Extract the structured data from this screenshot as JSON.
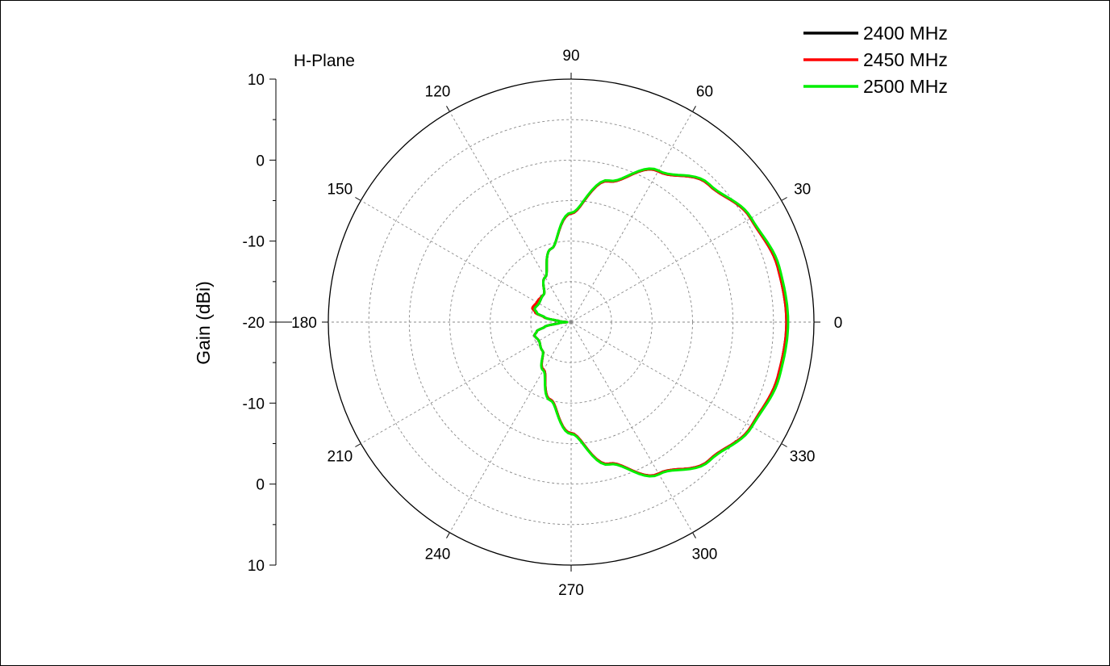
{
  "chart_data": {
    "type": "polar-line",
    "title": "H-Plane",
    "ylabel": "Gain (dBi)",
    "r_range_dbi": [
      -20,
      10
    ],
    "r_ticks": [
      "10",
      "0",
      "-10",
      "-20",
      "-10",
      "0",
      "10"
    ],
    "r_grid_dbi": [
      -20,
      -15,
      -10,
      -5,
      0,
      5,
      10
    ],
    "angle_ticks_deg": [
      0,
      30,
      60,
      90,
      120,
      150,
      180,
      210,
      240,
      270,
      300,
      330
    ],
    "angle_labels": [
      "0",
      "30",
      "60",
      "90",
      "120",
      "150",
      "180",
      "210",
      "240",
      "270",
      "300",
      "330"
    ],
    "legend_position": "top-right",
    "grid": true,
    "series": [
      {
        "name": "2400 MHz",
        "color": "#000000",
        "angles_deg": [
          0,
          15,
          30,
          45,
          60,
          75,
          90,
          105,
          120,
          135,
          150,
          160,
          165,
          170,
          175,
          180,
          185,
          190,
          195,
          200,
          210,
          225,
          240,
          255,
          270,
          285,
          300,
          315,
          330,
          345,
          360
        ],
        "gain_dbi": [
          6.6,
          6.4,
          5.6,
          4.0,
          1.5,
          -2.0,
          -6.6,
          -10.6,
          -13.6,
          -15.2,
          -15.4,
          -15.2,
          -15.6,
          -16.7,
          -18.5,
          -19.5,
          -18.5,
          -16.7,
          -15.6,
          -15.2,
          -15.4,
          -15.0,
          -13.2,
          -10.1,
          -6.3,
          -1.9,
          1.6,
          4.1,
          5.7,
          6.4,
          6.6
        ]
      },
      {
        "name": "2450 MHz",
        "color": "#ff0000",
        "angles_deg": [
          0,
          15,
          30,
          45,
          60,
          75,
          90,
          105,
          120,
          135,
          150,
          160,
          165,
          170,
          175,
          180,
          185,
          190,
          195,
          200,
          210,
          225,
          240,
          255,
          270,
          285,
          300,
          315,
          330,
          345,
          360
        ],
        "gain_dbi": [
          6.6,
          6.4,
          5.6,
          4.0,
          1.5,
          -2.0,
          -6.6,
          -10.6,
          -13.6,
          -15.2,
          -15.1,
          -14.9,
          -15.4,
          -16.6,
          -18.5,
          -19.5,
          -18.5,
          -16.7,
          -15.6,
          -15.2,
          -15.4,
          -15.0,
          -13.2,
          -10.1,
          -6.3,
          -1.9,
          1.6,
          4.1,
          5.7,
          6.4,
          6.6
        ]
      },
      {
        "name": "2500 MHz",
        "color": "#00ee00",
        "angles_deg": [
          0,
          15,
          30,
          45,
          60,
          75,
          90,
          105,
          120,
          135,
          150,
          160,
          165,
          170,
          175,
          180,
          185,
          190,
          195,
          200,
          210,
          225,
          240,
          255,
          270,
          285,
          300,
          315,
          330,
          345,
          360
        ],
        "gain_dbi": [
          6.8,
          6.6,
          5.7,
          4.1,
          1.6,
          -1.9,
          -6.5,
          -10.6,
          -13.6,
          -15.2,
          -15.4,
          -15.2,
          -15.6,
          -16.7,
          -18.5,
          -19.5,
          -18.5,
          -16.7,
          -15.6,
          -15.2,
          -15.4,
          -15.0,
          -13.1,
          -10.0,
          -6.2,
          -1.8,
          1.7,
          4.2,
          5.8,
          6.6,
          6.8
        ]
      }
    ]
  }
}
